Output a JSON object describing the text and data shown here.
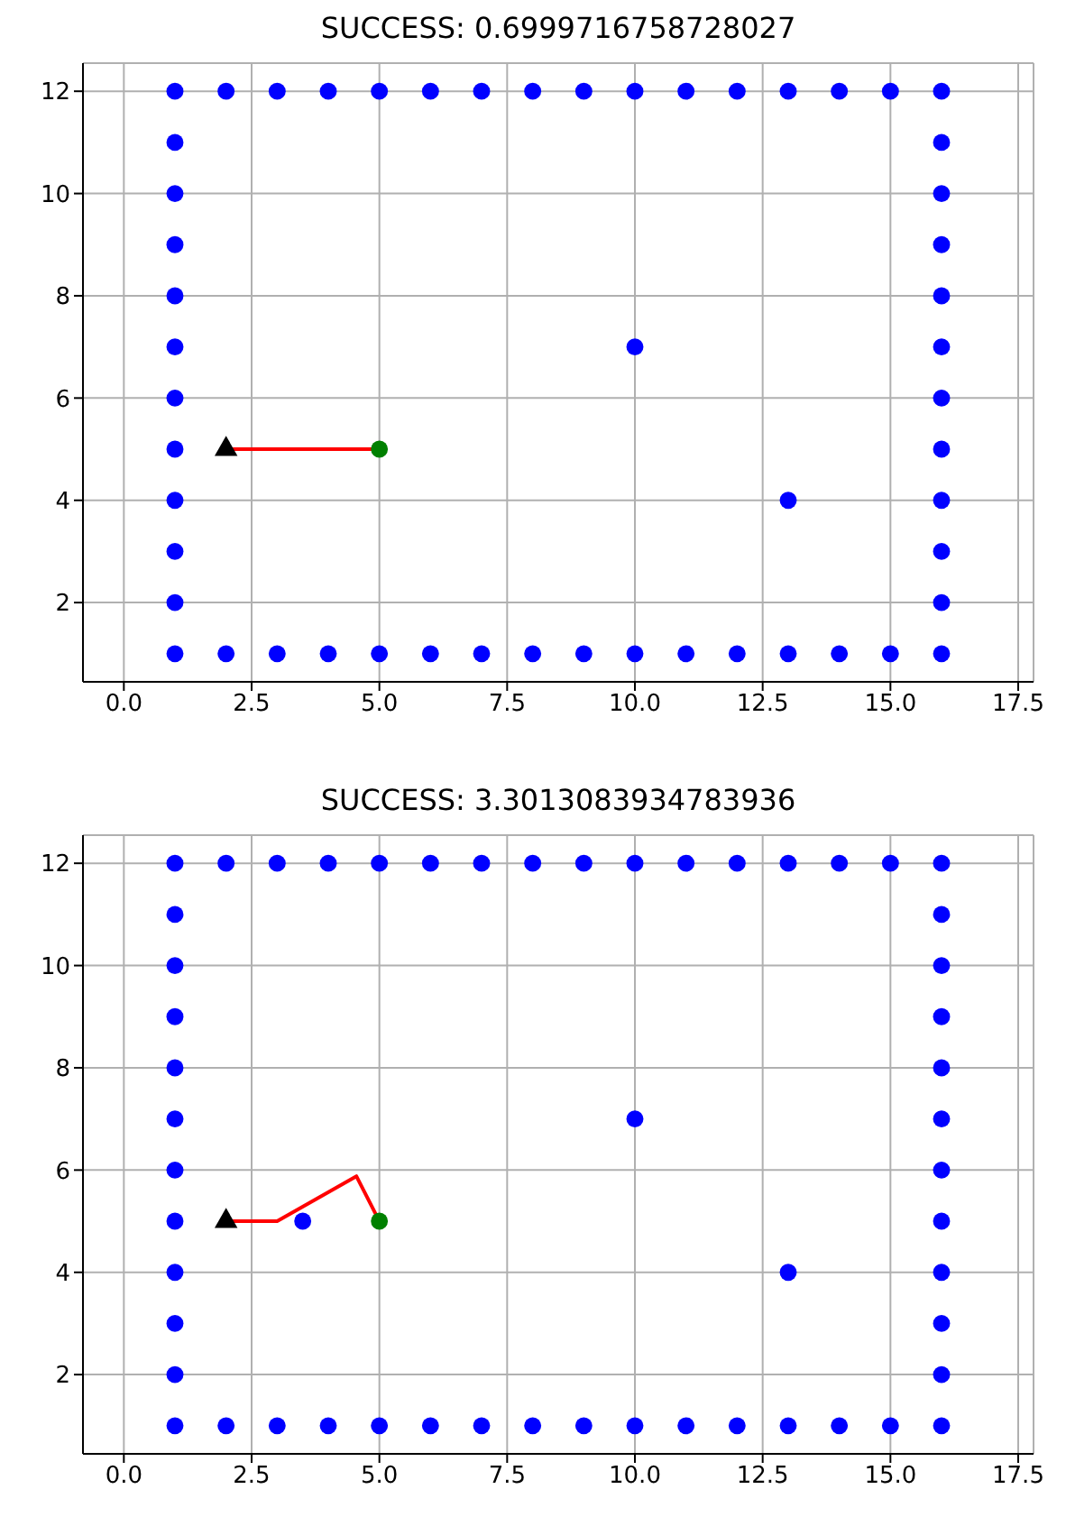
{
  "chart_data": [
    {
      "type": "scatter",
      "title": "SUCCESS: 0.6999716758728027",
      "xlim": [
        -0.8,
        17.8
      ],
      "ylim": [
        0.45,
        12.55
      ],
      "xticks": [
        {
          "value": 0,
          "label": "0.0"
        },
        {
          "value": 2.5,
          "label": "2.5"
        },
        {
          "value": 5,
          "label": "5.0"
        },
        {
          "value": 7.5,
          "label": "7.5"
        },
        {
          "value": 10,
          "label": "10.0"
        },
        {
          "value": 12.5,
          "label": "12.5"
        },
        {
          "value": 15,
          "label": "15.0"
        },
        {
          "value": 17.5,
          "label": "17.5"
        }
      ],
      "yticks": [
        2,
        4,
        6,
        8,
        10,
        12
      ],
      "grid": true,
      "series": [
        {
          "type": "scatter",
          "marker": "circle",
          "color": "#0000ff",
          "x": [
            1,
            1,
            1,
            1,
            1,
            1,
            1,
            1,
            1,
            1,
            1,
            1,
            2,
            3,
            4,
            5,
            6,
            7,
            8,
            9,
            10,
            11,
            12,
            13,
            14,
            15,
            16,
            16,
            16,
            16,
            16,
            16,
            16,
            16,
            16,
            16,
            16,
            16,
            2,
            3,
            4,
            5,
            6,
            7,
            8,
            9,
            10,
            11,
            12,
            13,
            14,
            15,
            10,
            13
          ],
          "values": [
            1,
            2,
            3,
            4,
            5,
            6,
            7,
            8,
            9,
            10,
            11,
            12,
            12,
            12,
            12,
            12,
            12,
            12,
            12,
            12,
            12,
            12,
            12,
            12,
            12,
            12,
            12,
            1,
            2,
            3,
            4,
            5,
            6,
            7,
            8,
            9,
            10,
            11,
            1,
            1,
            1,
            1,
            1,
            1,
            1,
            1,
            1,
            1,
            1,
            1,
            1,
            1,
            7,
            4
          ]
        },
        {
          "type": "line",
          "marker": "none",
          "line_style": "solid",
          "color": "#ff0000",
          "x": [
            2,
            5
          ],
          "values": [
            5,
            5
          ]
        },
        {
          "type": "scatter",
          "marker": "circle",
          "color": "#008000",
          "x": [
            5
          ],
          "values": [
            5
          ]
        },
        {
          "type": "scatter",
          "marker": "triangle",
          "color": "#000000",
          "x": [
            2
          ],
          "values": [
            5
          ]
        }
      ]
    },
    {
      "type": "scatter",
      "title": "SUCCESS: 3.3013083934783936",
      "xlim": [
        -0.8,
        17.8
      ],
      "ylim": [
        0.45,
        12.55
      ],
      "xticks": [
        {
          "value": 0,
          "label": "0.0"
        },
        {
          "value": 2.5,
          "label": "2.5"
        },
        {
          "value": 5,
          "label": "5.0"
        },
        {
          "value": 7.5,
          "label": "7.5"
        },
        {
          "value": 10,
          "label": "10.0"
        },
        {
          "value": 12.5,
          "label": "12.5"
        },
        {
          "value": 15,
          "label": "15.0"
        },
        {
          "value": 17.5,
          "label": "17.5"
        }
      ],
      "yticks": [
        2,
        4,
        6,
        8,
        10,
        12
      ],
      "grid": true,
      "series": [
        {
          "type": "scatter",
          "marker": "circle",
          "color": "#0000ff",
          "x": [
            1,
            1,
            1,
            1,
            1,
            1,
            1,
            1,
            1,
            1,
            1,
            1,
            2,
            3,
            4,
            5,
            6,
            7,
            8,
            9,
            10,
            11,
            12,
            13,
            14,
            15,
            16,
            16,
            16,
            16,
            16,
            16,
            16,
            16,
            16,
            16,
            16,
            16,
            2,
            3,
            4,
            5,
            6,
            7,
            8,
            9,
            10,
            11,
            12,
            13,
            14,
            15,
            10,
            13,
            3.5
          ],
          "values": [
            1,
            2,
            3,
            4,
            5,
            6,
            7,
            8,
            9,
            10,
            11,
            12,
            12,
            12,
            12,
            12,
            12,
            12,
            12,
            12,
            12,
            12,
            12,
            12,
            12,
            12,
            12,
            1,
            2,
            3,
            4,
            5,
            6,
            7,
            8,
            9,
            10,
            11,
            1,
            1,
            1,
            1,
            1,
            1,
            1,
            1,
            1,
            1,
            1,
            1,
            1,
            1,
            7,
            4,
            5
          ]
        },
        {
          "type": "line",
          "marker": "none",
          "line_style": "solid",
          "color": "#ff0000",
          "x": [
            2,
            3,
            4.55,
            5
          ],
          "values": [
            5,
            5,
            5.88,
            5
          ]
        },
        {
          "type": "scatter",
          "marker": "circle",
          "color": "#008000",
          "x": [
            5
          ],
          "values": [
            5
          ]
        },
        {
          "type": "scatter",
          "marker": "triangle",
          "color": "#000000",
          "x": [
            2
          ],
          "values": [
            5
          ]
        }
      ]
    }
  ]
}
